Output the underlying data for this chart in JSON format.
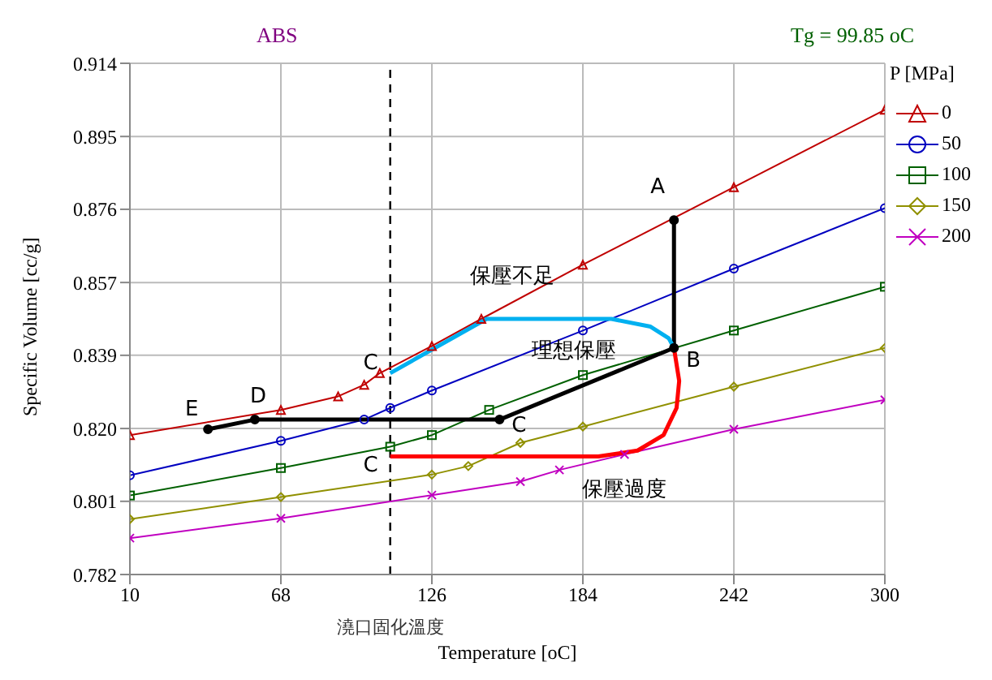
{
  "chart_data": {
    "type": "line",
    "title": "ABS",
    "subtitle": "Tg = 99.85 oC",
    "xlabel": "Temperature [oC]",
    "ylabel": "Specific Volume [cc/g]",
    "legend_title": "P [MPa]",
    "xlim": [
      10,
      300
    ],
    "xticks": [
      10,
      68,
      126,
      184,
      242,
      300
    ],
    "ylim": [
      0.782,
      0.914
    ],
    "yticks": [
      0.782,
      {
        "value": 0.8009,
        "label": "0.801"
      },
      {
        "value": 0.8197,
        "label": "0.820"
      },
      {
        "value": 0.8386,
        "label": "0.839"
      },
      {
        "value": 0.8574,
        "label": "0.857"
      },
      {
        "value": 0.8763,
        "label": "0.876"
      },
      {
        "value": 0.8951,
        "label": "0.895"
      },
      0.914
    ],
    "grid": true,
    "legend": "right",
    "series": [
      {
        "name": "0",
        "color": "#c00000",
        "marker": "triangle",
        "x": [
          10,
          68,
          90,
          100,
          106,
          126,
          145,
          184,
          242,
          300
        ],
        "values": [
          0.818,
          0.8245,
          0.828,
          0.831,
          0.834,
          0.841,
          0.848,
          0.862,
          0.882,
          0.902
        ]
      },
      {
        "name": "50",
        "color": "#0000c0",
        "marker": "circle",
        "x": [
          10,
          68,
          100,
          110,
          126,
          184,
          242,
          300
        ],
        "values": [
          0.8076,
          0.8165,
          0.822,
          0.825,
          0.8295,
          0.845,
          0.861,
          0.8766
        ]
      },
      {
        "name": "100",
        "color": "#006000",
        "marker": "square",
        "x": [
          10,
          68,
          110,
          126,
          148,
          184,
          242,
          300
        ],
        "values": [
          0.8024,
          0.8095,
          0.815,
          0.818,
          0.8245,
          0.8335,
          0.845,
          0.8563
        ]
      },
      {
        "name": "150",
        "color": "#909000",
        "marker": "diamond",
        "x": [
          10,
          68,
          126,
          140,
          160,
          184,
          242,
          300
        ],
        "values": [
          0.7963,
          0.802,
          0.8078,
          0.81,
          0.816,
          0.8202,
          0.8305,
          0.8405
        ]
      },
      {
        "name": "200",
        "color": "#c000c0",
        "marker": "cross",
        "x": [
          10,
          68,
          126,
          160,
          175,
          200,
          242,
          300
        ],
        "values": [
          0.7914,
          0.7965,
          0.8025,
          0.806,
          0.809,
          0.813,
          0.8195,
          0.8271
        ]
      },
      {
        "color": "#000000",
        "marker": "circle",
        "x": [
          40,
          58,
          152,
          219,
          219
        ],
        "values": [
          0.8195,
          0.822,
          0.822,
          0.8405,
          0.8735
        ]
      },
      {
        "color": "#00b0f0",
        "marker": "none",
        "x": [
          110,
          147,
          195,
          210,
          217,
          219
        ],
        "values": [
          0.834,
          0.848,
          0.848,
          0.846,
          0.843,
          0.8405
        ]
      },
      {
        "color": "#ff0000",
        "marker": "none",
        "x": [
          110,
          190,
          205,
          215,
          220,
          221,
          219
        ],
        "values": [
          0.8125,
          0.8125,
          0.814,
          0.818,
          0.825,
          0.832,
          0.8405
        ]
      }
    ],
    "ref_lines": [
      {
        "axis": "x",
        "value": 110,
        "label": "澆口固化溫度",
        "line_style": "dashed",
        "color": "#000000"
      }
    ],
    "annotations": [
      {
        "text": "A",
        "x": 219,
        "y": 0.8735
      },
      {
        "text": "B",
        "x": 219,
        "y": 0.8405
      },
      {
        "text": "C",
        "x": 152,
        "y": 0.822
      },
      {
        "text": "C",
        "x": 110,
        "y": 0.834
      },
      {
        "text": "C",
        "x": 110,
        "y": 0.8125
      },
      {
        "text": "D",
        "x": 58,
        "y": 0.822
      },
      {
        "text": "E",
        "x": 40,
        "y": 0.8195
      },
      {
        "text": "保壓不足",
        "x": 147,
        "y": 0.848
      },
      {
        "text": "理想保壓",
        "x": 185.5,
        "y": 0.83125
      },
      {
        "text": "保壓過度",
        "x": 200,
        "y": 0.813
      }
    ]
  }
}
